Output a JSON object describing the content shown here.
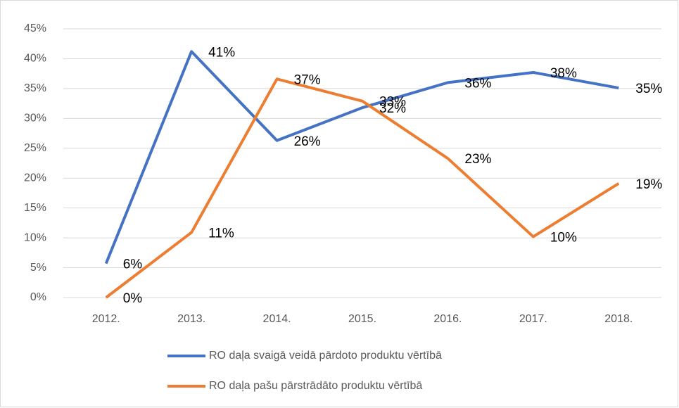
{
  "chart_data": {
    "type": "line",
    "categories": [
      "2012.",
      "2013.",
      "2014.",
      "2015.",
      "2016.",
      "2017.",
      "2018."
    ],
    "series": [
      {
        "name": "RO daļa svaigā veidā pārdoto produktu vērtībā",
        "color": "#4472c4",
        "values": [
          5.7,
          41.2,
          26.3,
          31.8,
          36.0,
          37.7,
          35.1
        ],
        "value_labels": [
          "6%",
          "41%",
          "26%",
          "32%",
          "36%",
          "38%",
          "35%"
        ]
      },
      {
        "name": "RO daļa pašu pārstrādāto produktu vērtībā",
        "color": "#ed7d31",
        "values": [
          0,
          10.9,
          36.6,
          32.9,
          23.3,
          10.2,
          19.1
        ],
        "value_labels": [
          "0%",
          "11%",
          "37%",
          "33%",
          "23%",
          "10%",
          "19%"
        ]
      }
    ],
    "ylim": [
      0,
      45
    ],
    "yticks": [
      {
        "value": 0,
        "label": "0%"
      },
      {
        "value": 5,
        "label": "5%"
      },
      {
        "value": 10,
        "label": "10%"
      },
      {
        "value": 15,
        "label": "15%"
      },
      {
        "value": 20,
        "label": "20%"
      },
      {
        "value": 25,
        "label": "25%"
      },
      {
        "value": 30,
        "label": "30%"
      },
      {
        "value": 35,
        "label": "35%"
      },
      {
        "value": 40,
        "label": "40%"
      },
      {
        "value": 45,
        "label": "45%"
      }
    ],
    "grid": true,
    "legend": "bottom"
  }
}
